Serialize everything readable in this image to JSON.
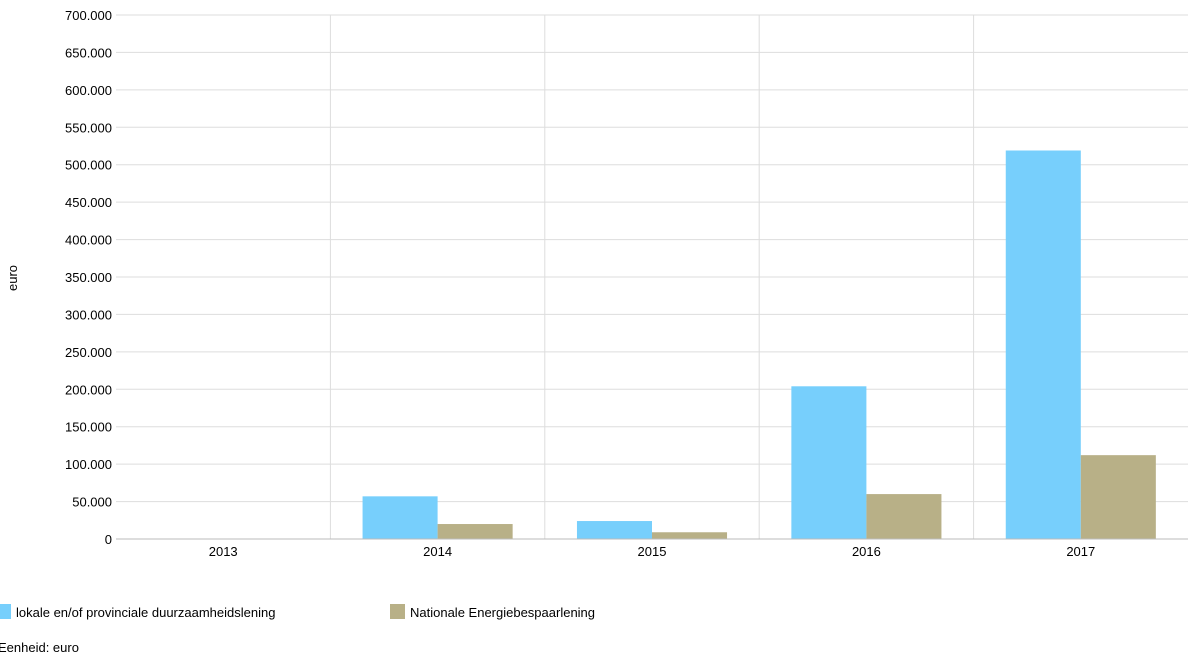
{
  "chart_data": {
    "type": "bar",
    "categories": [
      "2013",
      "2014",
      "2015",
      "2016",
      "2017"
    ],
    "series": [
      {
        "name": "lokale en/of provinciale duurzaamheidslening",
        "color": "#77cffc",
        "values": [
          0,
          57000,
          24000,
          204000,
          519000
        ]
      },
      {
        "name": "Nationale Energiebespaarlening",
        "color": "#b8b087",
        "values": [
          0,
          20000,
          9000,
          60000,
          112000
        ]
      }
    ],
    "ylabel": "euro",
    "ylim": [
      0,
      700000
    ],
    "yticks": [
      "0",
      "50.000",
      "100.000",
      "150.000",
      "200.000",
      "250.000",
      "300.000",
      "350.000",
      "400.000",
      "450.000",
      "500.000",
      "550.000",
      "600.000",
      "650.000",
      "700.000"
    ],
    "grid": true,
    "legend_position": "bottom-left",
    "footnote": "Eenheid: euro"
  }
}
